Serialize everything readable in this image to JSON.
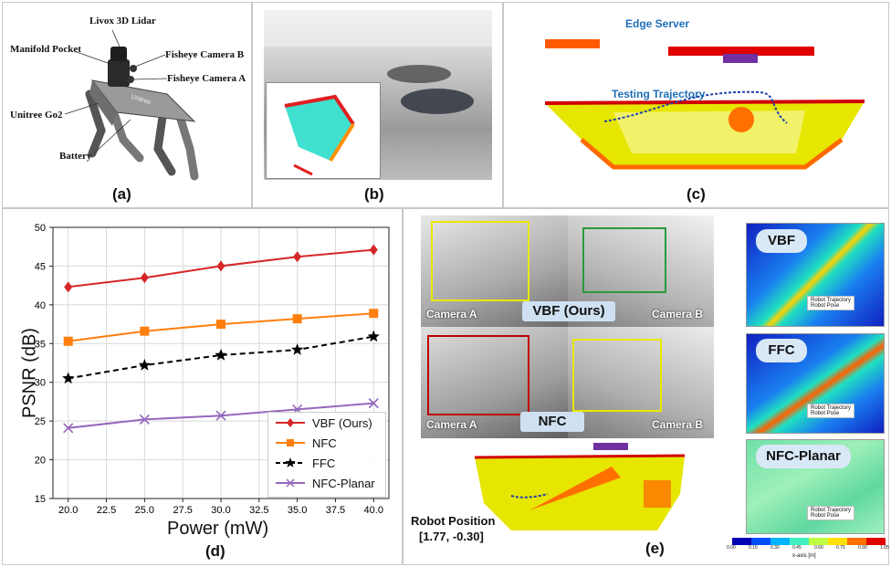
{
  "panel_a": {
    "label": "(a)",
    "callouts": [
      "Livox 3D Lidar",
      "Manifold Pocket",
      "Fisheye Camera B",
      "Fisheye Camera A",
      "Unitree Go2",
      "Battery"
    ],
    "robot_badge": "Unitree"
  },
  "panel_b": {
    "label": "(b)"
  },
  "panel_c": {
    "label": "(c)",
    "edge_server": "Edge Server",
    "testing_trajectory": "Testing Trajectory"
  },
  "panel_d": {
    "label": "(d)"
  },
  "panel_e": {
    "label": "(e)",
    "camera_a": "Camera A",
    "camera_b": "Camera B",
    "vbf_tag": "VBF (Ours)",
    "nfc_tag": "NFC",
    "robot_position_label": "Robot Position",
    "robot_position_value": "[1.77, -0.30]",
    "heatmaps": [
      {
        "title": "VBF",
        "legend": [
          "Robot Trajectory",
          "Robot Pose"
        ]
      },
      {
        "title": "FFC",
        "legend": [
          "Robot Trajectory",
          "Robot Pose"
        ]
      },
      {
        "title": "NFC-Planar",
        "legend": [
          "Robot Trajectory",
          "Robot Pose"
        ]
      }
    ],
    "colorbar": {
      "ticks": [
        "0.00",
        "0.15",
        "0.30",
        "0.45",
        "0.60",
        "0.75",
        "0.90",
        "1.05"
      ],
      "label": "x-axis [m]",
      "colors": [
        "#0000b4",
        "#0050ff",
        "#00b4ff",
        "#40f0c0",
        "#c0ff40",
        "#ffe000",
        "#ff7000",
        "#e00000"
      ]
    }
  },
  "chart_data": {
    "type": "line",
    "xlabel": "Power (mW)",
    "ylabel": "PSNR (dB)",
    "xlim": [
      19,
      41
    ],
    "ylim": [
      15,
      50
    ],
    "xticks": [
      "20.0",
      "22.5",
      "25.0",
      "27.5",
      "30.0",
      "32.5",
      "35.0",
      "37.5",
      "40.0"
    ],
    "yticks": [
      "15",
      "20",
      "25",
      "30",
      "35",
      "40",
      "45",
      "50"
    ],
    "grid": true,
    "legend_position": "bottom-right",
    "x": [
      20,
      25,
      30,
      35,
      40
    ],
    "series": [
      {
        "name": "VBF (Ours)",
        "color": "#d62728",
        "marker": "diamond",
        "dash": "solid",
        "values": [
          42.3,
          43.5,
          45.0,
          46.2,
          47.1
        ]
      },
      {
        "name": "NFC",
        "color": "#ff7f0e",
        "marker": "square",
        "dash": "solid",
        "values": [
          35.3,
          36.6,
          37.5,
          38.2,
          38.9
        ]
      },
      {
        "name": "FFC",
        "color": "#000000",
        "marker": "star",
        "dash": "dashed",
        "values": [
          30.5,
          32.2,
          33.5,
          34.2,
          35.9
        ]
      },
      {
        "name": "NFC-Planar",
        "color": "#9467bd",
        "marker": "x",
        "dash": "solid",
        "values": [
          24.1,
          25.2,
          25.7,
          26.5,
          27.3
        ]
      }
    ]
  }
}
